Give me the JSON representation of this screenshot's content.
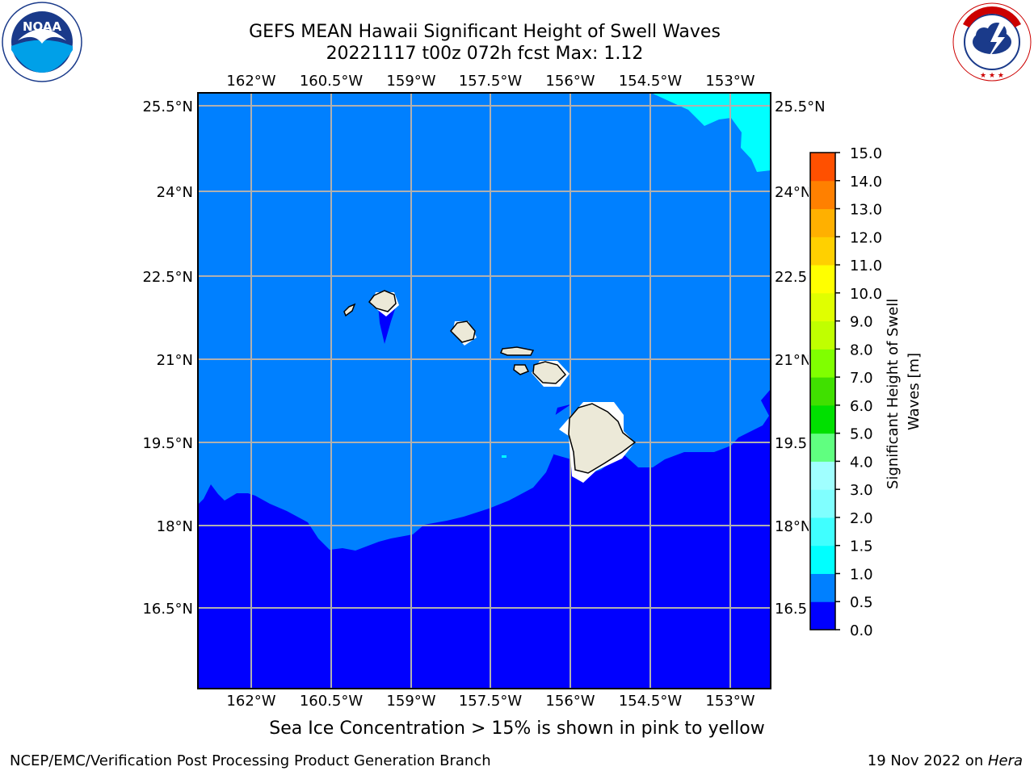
{
  "header": {
    "title_line1": "GEFS MEAN Hawaii Significant Height of Swell Waves",
    "title_line2": "20221117 t00z 072h fcst   Max: 1.12"
  },
  "logos": {
    "left": {
      "name": "NOAA",
      "text": "NOAA",
      "ring_text": "NATIONAL OCEANIC AND ATMOSPHERIC ADMINISTRATION · U.S. DEPARTMENT OF COMMERCE"
    },
    "right": {
      "name": "National Weather Service",
      "ring_text": "NATIONAL WEATHER SERVICE"
    }
  },
  "map": {
    "lon_labels": [
      "162°W",
      "160.5°W",
      "159°W",
      "157.5°W",
      "156°W",
      "154.5°W",
      "153°W"
    ],
    "lat_labels": [
      "25.5°N",
      "24°N",
      "22.5°N",
      "21°N",
      "19.5°N",
      "18°N",
      "16.5°N"
    ],
    "colors": {
      "land": "#ece9d8",
      "level_0_0_5": "#0000ff",
      "level_0_5_1_0": "#0080ff",
      "level_1_0_1_5": "#00ffff",
      "grid": "#b0b0b0"
    }
  },
  "colorbar": {
    "label": "Significant Height of Swell Waves [m]",
    "ticks": [
      "0.0",
      "0.5",
      "1.0",
      "1.5",
      "2.0",
      "3.0",
      "4.0",
      "5.0",
      "6.0",
      "7.0",
      "8.0",
      "9.0",
      "10.0",
      "11.0",
      "12.0",
      "13.0",
      "14.0",
      "15.0"
    ],
    "colors": [
      "#0000ff",
      "#0080ff",
      "#00ffff",
      "#40ffff",
      "#80ffff",
      "#a0ffff",
      "#60ff80",
      "#00e000",
      "#40e000",
      "#80ff00",
      "#c0ff00",
      "#e0ff00",
      "#ffff00",
      "#ffd000",
      "#ffb000",
      "#ff8000",
      "#ff5000",
      "#ff2000"
    ]
  },
  "footer": {
    "note": "Sea Ice Concentration > 15% is shown in pink to yellow",
    "credit_left": "NCEP/EMC/Verification Post Processing Product Generation Branch",
    "credit_right_date": "19 Nov 2022 on ",
    "credit_right_machine": "Hera"
  }
}
